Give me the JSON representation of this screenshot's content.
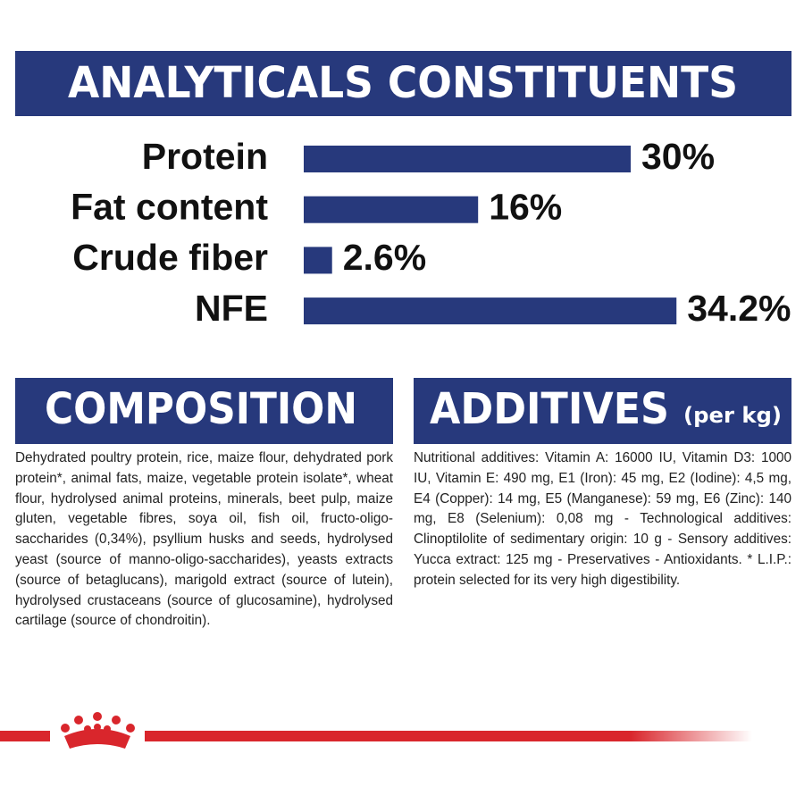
{
  "chart_data": {
    "type": "bar",
    "title": "ANALYTICALS CONSTITUENTS",
    "categories": [
      "Protein",
      "Fat content",
      "Crude fiber",
      "NFE"
    ],
    "values": [
      30,
      16,
      2.6,
      34.2
    ],
    "value_labels": [
      "30%",
      "16%",
      "2.6%",
      "34.2%"
    ],
    "color": "#27397c"
  },
  "composition": {
    "title": "COMPOSITION",
    "text": "Dehydrated poultry protein, rice, maize flour, dehydrated pork protein*, animal fats, maize, vegetable protein isolate*, wheat flour, hydrolysed animal proteins, minerals, beet pulp, maize gluten, vegetable fibres, soya oil, fish oil, fructo-oligo-saccharides (0,34%), psyllium husks and seeds, hydrolysed yeast (source of manno-oligo-saccharides), yeasts extracts (source of betaglucans), marigold extract (source of lutein), hydrolysed crustaceans (source of glucosamine), hydrolysed cartilage (source of chondroitin)."
  },
  "additives": {
    "title": "ADDITIVES",
    "subtitle": "(per kg)",
    "text": "Nutritional additives: Vitamin A: 16000 IU, Vitamin D3: 1000 IU, Vitamin E: 490 mg, E1 (Iron): 45 mg, E2 (Iodine): 4,5 mg, E4 (Copper): 14 mg, E5 (Manganese): 59 mg, E6 (Zinc): 140 mg, E8 (Selenium): 0,08 mg - Technological additives: Clinoptilolite of sedimentary origin: 10 g - Sensory additives: Yucca extract: 125 mg - Preservatives - Antioxidants. * L.I.P.: protein selected for its very high digestibility."
  }
}
